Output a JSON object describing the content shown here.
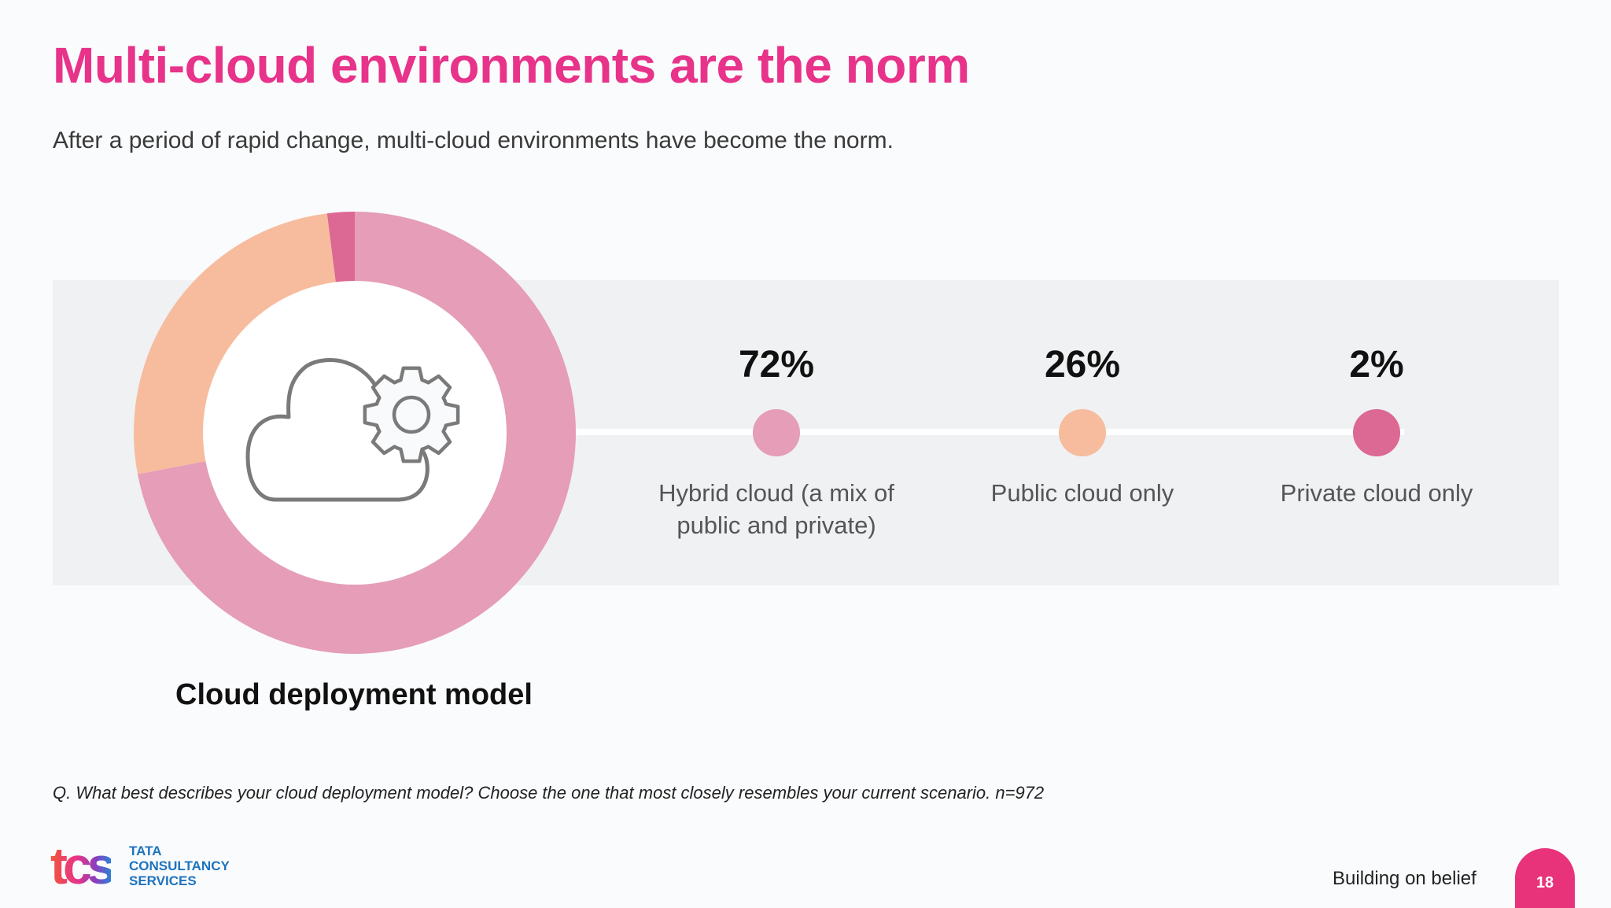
{
  "slide": {
    "title": "Multi-cloud environments are the norm",
    "subtitle": "After a period of rapid change, multi-cloud environments have become the norm.",
    "chart_caption": "Cloud deployment model",
    "footnote": "Q. What best describes your cloud deployment model?  Choose the one that most closely resembles your current scenario. n=972",
    "tagline": "Building on belief",
    "page_number": "18"
  },
  "logo": {
    "mark": "tcs",
    "line1": "TATA",
    "line2": "CONSULTANCY",
    "line3": "SERVICES"
  },
  "stats": [
    {
      "value": "72%",
      "label": "Hybrid cloud (a mix of public and private)",
      "color": "#e59db8"
    },
    {
      "value": "26%",
      "label": "Public cloud only",
      "color": "#f7bc9e"
    },
    {
      "value": "2%",
      "label": "Private cloud only",
      "color": "#dc6894"
    }
  ],
  "icons": {
    "center": "cloud-gear-icon"
  },
  "chart_data": {
    "type": "pie",
    "variant": "donut",
    "categories": [
      "Hybrid cloud (a mix of public and private)",
      "Public cloud only",
      "Private cloud only"
    ],
    "values": [
      72,
      26,
      2
    ],
    "colors": [
      "#e59db8",
      "#f7bc9e",
      "#dc6894"
    ],
    "unit": "%",
    "title": "Cloud deployment model"
  }
}
